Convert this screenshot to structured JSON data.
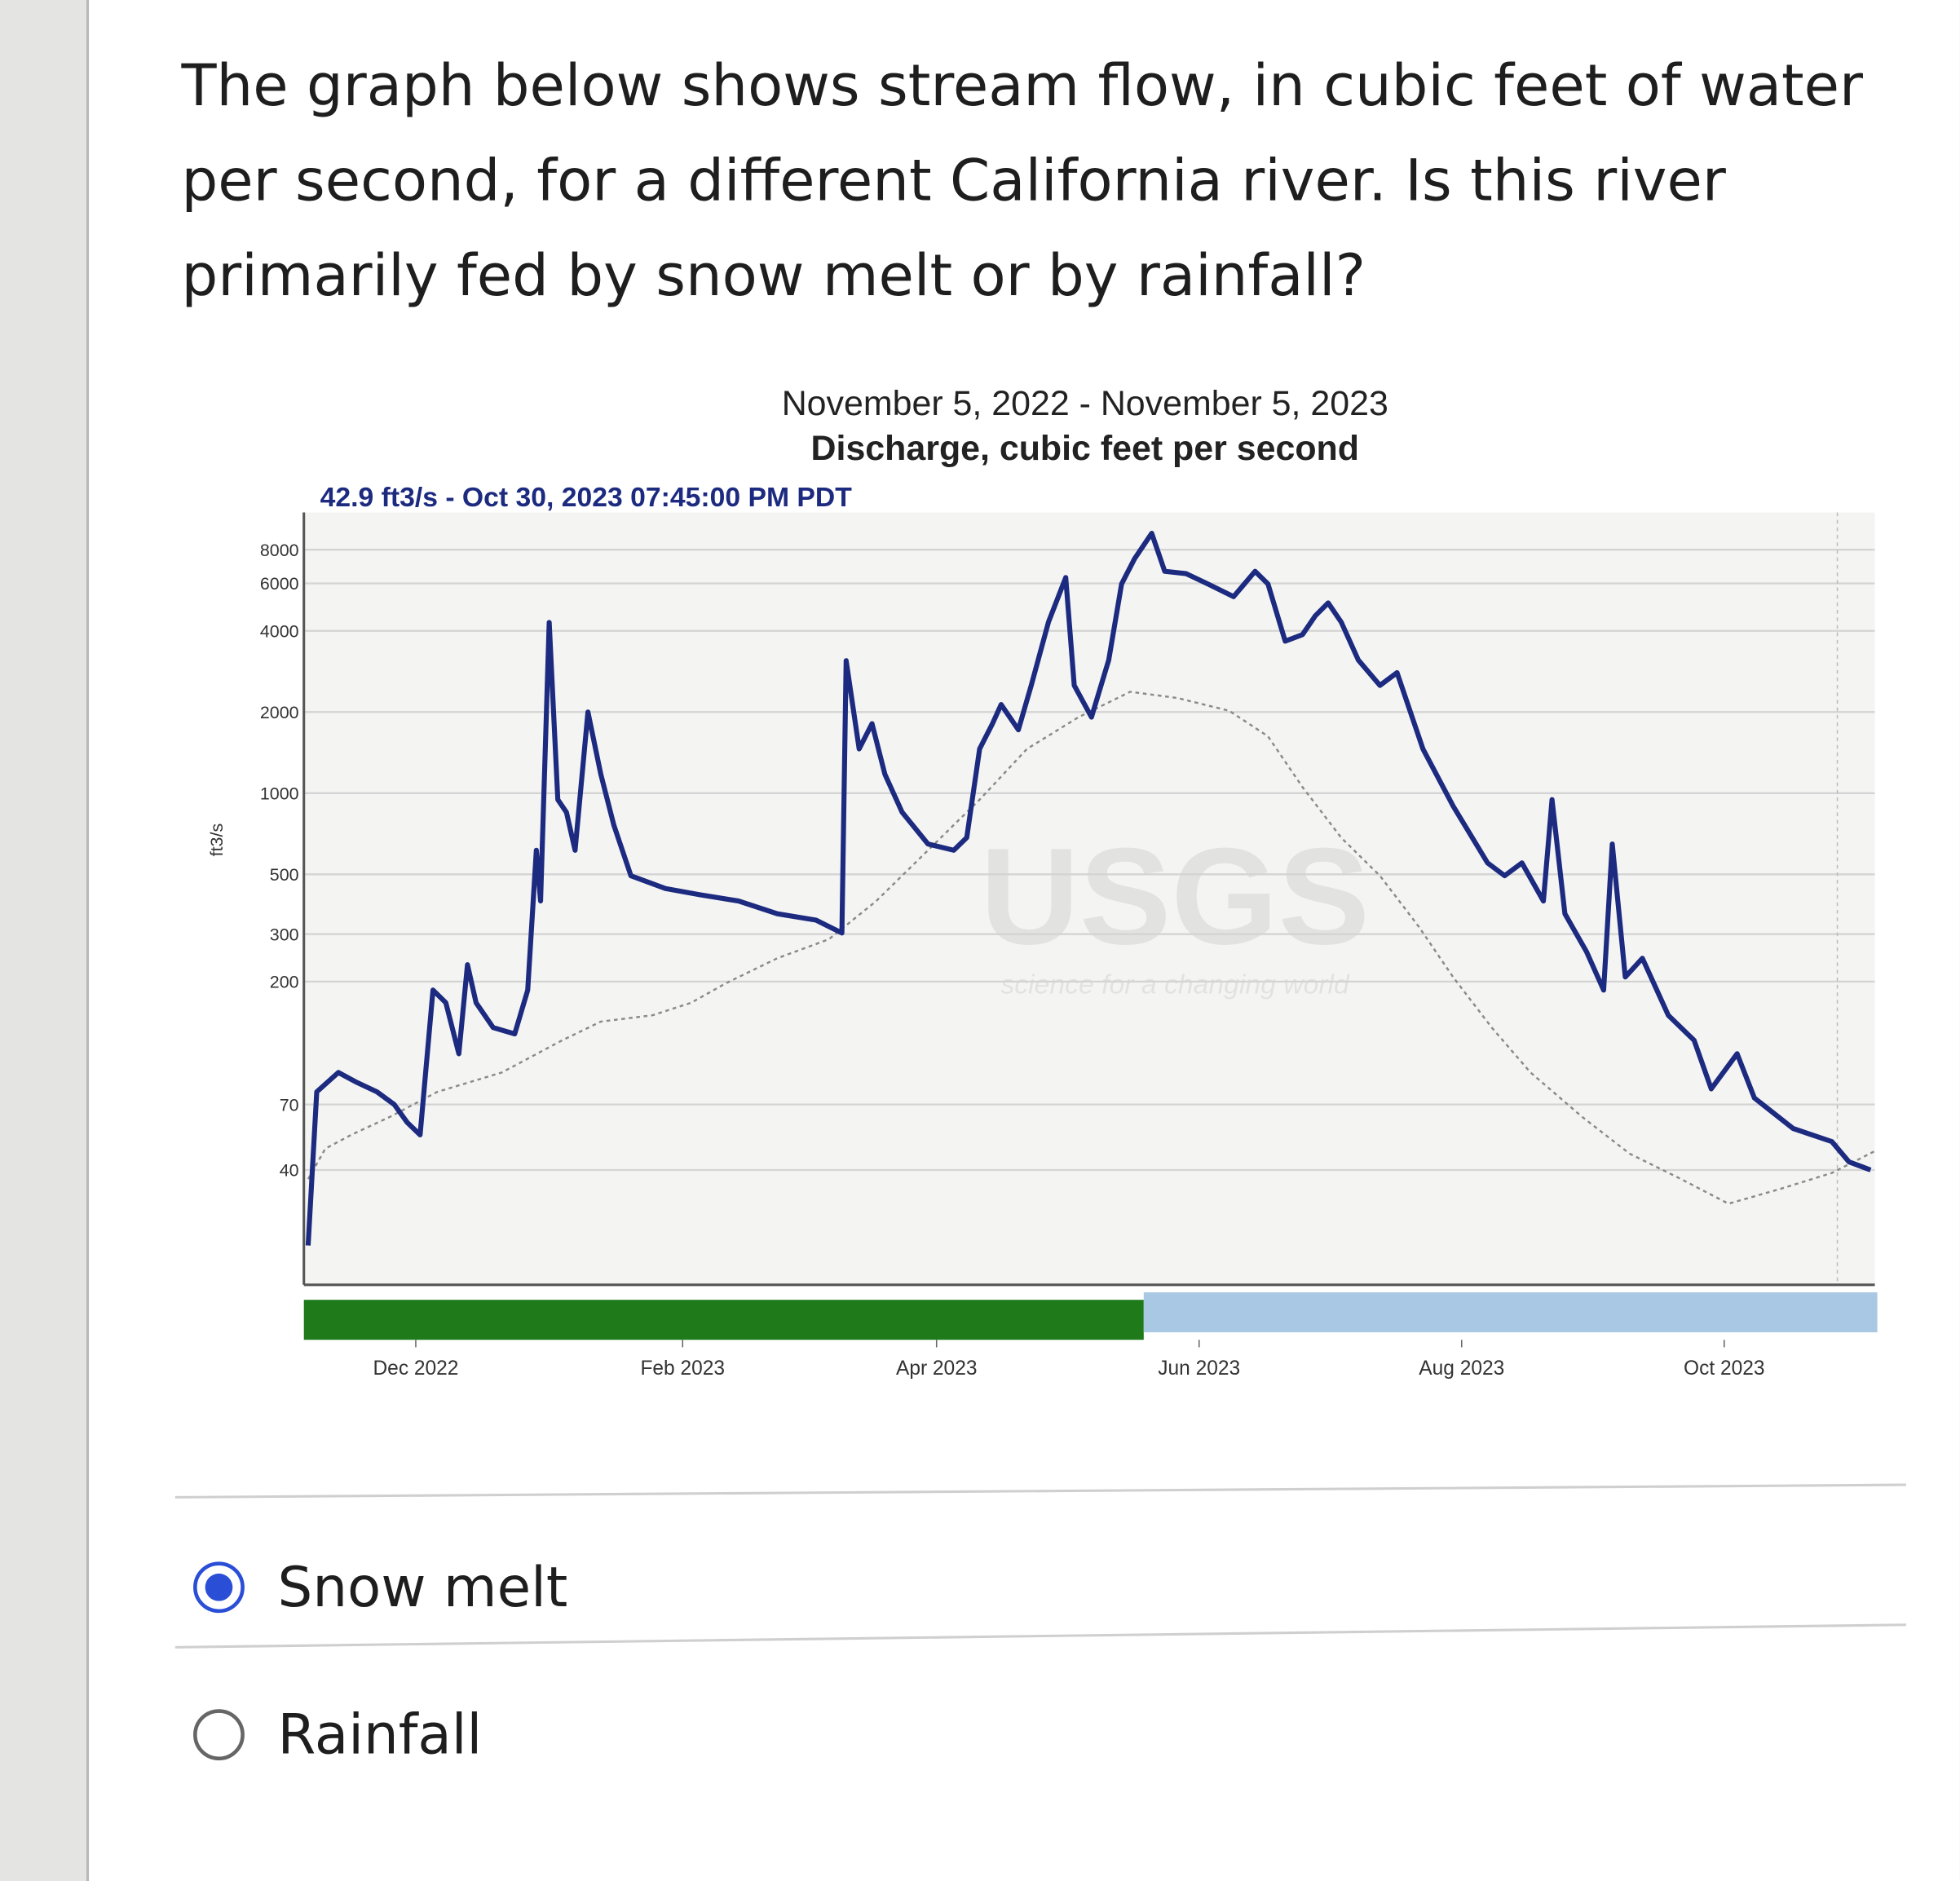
{
  "question": [
    "The graph below shows stream flow, in cubic feet of water",
    "per second, for a different California river. Is this river",
    "primarily fed by snow melt or by rainfall?"
  ],
  "chart_data": {
    "type": "line",
    "title": "November 5, 2022 - November 5, 2023",
    "subtitle": "Discharge, cubic feet per second",
    "annotation": "42.9 ft3/s - Oct 30, 2023 07:45:00 PM PDT",
    "y_label": "ft3/s",
    "watermark": "USGS",
    "watermark_tagline": "science for a changing world",
    "log_y": true,
    "grid": true,
    "xlim": [
      "2022-11-05",
      "2023-11-05"
    ],
    "xticks": [
      {
        "value": "2022-12-01",
        "label": "Dec 2022"
      },
      {
        "value": "2023-02-01",
        "label": "Feb 2023"
      },
      {
        "value": "2023-04-01",
        "label": "Apr 2023"
      },
      {
        "value": "2023-06-01",
        "label": "Jun 2023"
      },
      {
        "value": "2023-08-01",
        "label": "Aug 2023"
      },
      {
        "value": "2023-10-01",
        "label": "Oct 2023"
      }
    ],
    "ylim": [
      15,
      11000
    ],
    "yticks": [
      40,
      70,
      200,
      300,
      500,
      1000,
      2000,
      4000,
      6000,
      8000
    ],
    "series": [
      {
        "color": "#8a8a8a",
        "dashed": true,
        "width": 1.6,
        "x": [
          "2022-11-06",
          "2022-11-10",
          "2022-11-16",
          "2022-11-25",
          "2022-12-06",
          "2022-12-21",
          "2023-01-04",
          "2023-01-13",
          "2023-01-25",
          "2023-02-03",
          "2023-02-11",
          "2023-02-23",
          "2023-03-07",
          "2023-03-18",
          "2023-03-30",
          "2023-04-11",
          "2023-04-22",
          "2023-05-04",
          "2023-05-16",
          "2023-05-27",
          "2023-06-08",
          "2023-06-17",
          "2023-06-25",
          "2023-07-04",
          "2023-07-13",
          "2023-07-22",
          "2023-07-30",
          "2023-08-08",
          "2023-08-17",
          "2023-08-29",
          "2023-09-09",
          "2023-09-21",
          "2023-10-02",
          "2023-10-14",
          "2023-10-26",
          "2023-11-05"
        ],
        "values": [
          37,
          48,
          54,
          63,
          78,
          92,
          121,
          142,
          150,
          167,
          197,
          244,
          287,
          398,
          614,
          946,
          1459,
          1914,
          2377,
          2254,
          2021,
          1626,
          1054,
          684,
          494,
          320,
          208,
          135,
          92,
          63,
          46,
          37,
          30,
          34,
          39,
          47
        ]
      },
      {
        "color": "#1c2a80",
        "dashed": false,
        "width": 4,
        "x": [
          "2022-11-06",
          "2022-11-08",
          "2022-11-13",
          "2022-11-17",
          "2022-11-22",
          "2022-11-26",
          "2022-11-29",
          "2022-12-02",
          "2022-12-05",
          "2022-12-08",
          "2022-12-11",
          "2022-12-13",
          "2022-12-15",
          "2022-12-19",
          "2022-12-24",
          "2022-12-27",
          "2022-12-29",
          "2022-12-30",
          "2023-01-01",
          "2023-01-03",
          "2023-01-05",
          "2023-01-07",
          "2023-01-10",
          "2023-01-13",
          "2023-01-16",
          "2023-01-20",
          "2023-01-28",
          "2023-02-05",
          "2023-02-14",
          "2023-02-23",
          "2023-03-04",
          "2023-03-10",
          "2023-03-11",
          "2023-03-14",
          "2023-03-17",
          "2023-03-20",
          "2023-03-24",
          "2023-03-30",
          "2023-04-05",
          "2023-04-08",
          "2023-04-11",
          "2023-04-14",
          "2023-04-16",
          "2023-04-20",
          "2023-04-23",
          "2023-04-27",
          "2023-05-01",
          "2023-05-03",
          "2023-05-07",
          "2023-05-11",
          "2023-05-14",
          "2023-05-17",
          "2023-05-21",
          "2023-05-24",
          "2023-05-29",
          "2023-06-03",
          "2023-06-09",
          "2023-06-14",
          "2023-06-17",
          "2023-06-21",
          "2023-06-25",
          "2023-06-28",
          "2023-07-01",
          "2023-07-04",
          "2023-07-08",
          "2023-07-13",
          "2023-07-17",
          "2023-07-23",
          "2023-07-30",
          "2023-08-07",
          "2023-08-11",
          "2023-08-15",
          "2023-08-20",
          "2023-08-22",
          "2023-08-25",
          "2023-08-30",
          "2023-09-03",
          "2023-09-05",
          "2023-09-08",
          "2023-09-12",
          "2023-09-18",
          "2023-09-24",
          "2023-09-28",
          "2023-10-04",
          "2023-10-08",
          "2023-10-17",
          "2023-10-26",
          "2023-10-30",
          "2023-11-04"
        ],
        "values": [
          21,
          78,
          92,
          85,
          78,
          70,
          60,
          54,
          186,
          167,
          108,
          231,
          167,
          135,
          128,
          186,
          614,
          398,
          4300,
          946,
          849,
          614,
          2000,
          1175,
          762,
          494,
          443,
          420,
          398,
          357,
          338,
          303,
          3100,
          1459,
          1811,
          1175,
          849,
          648,
          614,
          684,
          1459,
          1811,
          2133,
          1718,
          2510,
          4315,
          6310,
          2510,
          1914,
          3119,
          5970,
          7413,
          9204,
          6653,
          6516,
          5970,
          5358,
          6653,
          5970,
          3664,
          3873,
          4550,
          5080,
          4315,
          3119,
          2510,
          2799,
          1459,
          897,
          551,
          494,
          551,
          398,
          946,
          357,
          258,
          186,
          648,
          208,
          244,
          150,
          121,
          80,
          108,
          74,
          57,
          51,
          42.9,
          40
        ]
      }
    ]
  },
  "options": [
    {
      "label": "Snow melt",
      "selected": true
    },
    {
      "label": "Rainfall",
      "selected": false
    }
  ]
}
